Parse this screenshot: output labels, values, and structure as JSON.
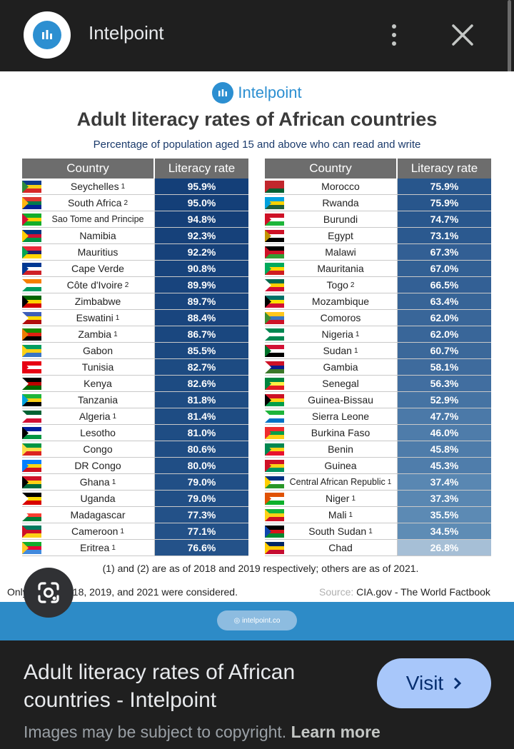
{
  "header": {
    "site_name": "Intelpoint",
    "menu_icon": "more-vert-icon",
    "close_icon": "close-icon"
  },
  "infographic": {
    "brand": "Intelpoint",
    "title": "Adult literacy rates of African countries",
    "subtitle": "Percentage of population aged 15 and above who can read and write",
    "col_country": "Country",
    "col_rate": "Literacy rate",
    "left_rows": [
      {
        "country": "Seychelles",
        "sup": "1",
        "rate": "95.9%",
        "color": "#143f78",
        "flag": [
          "#0d3b8c",
          "#f7d117",
          "#d62828",
          "#2e8b3c"
        ]
      },
      {
        "country": "South Africa",
        "sup": "2",
        "rate": "95.0%",
        "color": "#143f78",
        "flag": [
          "#de3831",
          "#007a4d",
          "#002395",
          "#ffb612"
        ]
      },
      {
        "country": "Sao Tome and Principe",
        "sup": "",
        "rate": "94.8%",
        "color": "#153f78",
        "flag": [
          "#12ad2b",
          "#ffce00",
          "#12ad2b",
          "#d21034"
        ]
      },
      {
        "country": "Namibia",
        "sup": "",
        "rate": "92.3%",
        "color": "#16417a",
        "flag": [
          "#003580",
          "#d21034",
          "#009543",
          "#ffce00"
        ]
      },
      {
        "country": "Mauritius",
        "sup": "",
        "rate": "92.2%",
        "color": "#16417a",
        "flag": [
          "#ea2839",
          "#1a206d",
          "#ffd500",
          "#00a551"
        ]
      },
      {
        "country": "Cape Verde",
        "sup": "",
        "rate": "90.8%",
        "color": "#17437c",
        "flag": [
          "#003893",
          "#ffffff",
          "#cf2027",
          "#003893"
        ]
      },
      {
        "country": "Côte d'Ivoire",
        "sup": "2",
        "rate": "89.9%",
        "color": "#18447d",
        "flag": [
          "#f77f00",
          "#ffffff",
          "#009e60",
          "#ffffff"
        ]
      },
      {
        "country": "Zimbabwe",
        "sup": "",
        "rate": "89.7%",
        "color": "#18447d",
        "flag": [
          "#006400",
          "#ffd200",
          "#d40000",
          "#000000"
        ]
      },
      {
        "country": "Eswatini",
        "sup": "1",
        "rate": "88.4%",
        "color": "#19457e",
        "flag": [
          "#3e5eb9",
          "#ffd900",
          "#b10c0c",
          "#ffffff"
        ]
      },
      {
        "country": "Zambia",
        "sup": "1",
        "rate": "86.7%",
        "color": "#1a477f",
        "flag": [
          "#198a00",
          "#de2010",
          "#000000",
          "#ef7d00"
        ]
      },
      {
        "country": "Gabon",
        "sup": "",
        "rate": "85.5%",
        "color": "#1b4880",
        "flag": [
          "#009e60",
          "#fcd116",
          "#3a75c4",
          "#fcd116"
        ]
      },
      {
        "country": "Tunisia",
        "sup": "",
        "rate": "82.7%",
        "color": "#1d4b82",
        "flag": [
          "#e70013",
          "#ffffff",
          "#e70013",
          "#e70013"
        ]
      },
      {
        "country": "Kenya",
        "sup": "",
        "rate": "82.6%",
        "color": "#1d4b82",
        "flag": [
          "#000000",
          "#bb0000",
          "#006600",
          "#ffffff"
        ]
      },
      {
        "country": "Tanzania",
        "sup": "",
        "rate": "81.8%",
        "color": "#1e4c83",
        "flag": [
          "#1eb53a",
          "#fcd116",
          "#000000",
          "#00a3dd"
        ]
      },
      {
        "country": "Algeria",
        "sup": "1",
        "rate": "81.4%",
        "color": "#1e4c83",
        "flag": [
          "#006233",
          "#ffffff",
          "#d21034",
          "#ffffff"
        ]
      },
      {
        "country": "Lesotho",
        "sup": "",
        "rate": "81.0%",
        "color": "#1f4d84",
        "flag": [
          "#00209f",
          "#ffffff",
          "#009543",
          "#000000"
        ]
      },
      {
        "country": "Congo",
        "sup": "",
        "rate": "80.6%",
        "color": "#1f4d84",
        "flag": [
          "#009543",
          "#fbde4a",
          "#dc241f",
          "#fbde4a"
        ]
      },
      {
        "country": "DR Congo",
        "sup": "",
        "rate": "80.0%",
        "color": "#204e85",
        "flag": [
          "#007fff",
          "#f7d618",
          "#ce1021",
          "#007fff"
        ]
      },
      {
        "country": "Ghana",
        "sup": "1",
        "rate": "79.0%",
        "color": "#214f86",
        "flag": [
          "#ce1126",
          "#fcd116",
          "#006b3f",
          "#000000"
        ]
      },
      {
        "country": "Uganda",
        "sup": "",
        "rate": "79.0%",
        "color": "#214f86",
        "flag": [
          "#000000",
          "#fcdc04",
          "#d90000",
          "#ffffff"
        ]
      },
      {
        "country": "Madagascar",
        "sup": "",
        "rate": "77.3%",
        "color": "#235188",
        "flag": [
          "#ffffff",
          "#fc3d32",
          "#007e3a",
          "#ffffff"
        ]
      },
      {
        "country": "Cameroon",
        "sup": "1",
        "rate": "77.1%",
        "color": "#235188",
        "flag": [
          "#007a5e",
          "#ce1126",
          "#fcd116",
          "#ce1126"
        ]
      },
      {
        "country": "Eritrea",
        "sup": "1",
        "rate": "76.6%",
        "color": "#245289",
        "flag": [
          "#12ad2b",
          "#ea0437",
          "#4189dd",
          "#ffc726"
        ]
      }
    ],
    "right_rows": [
      {
        "country": "Morocco",
        "sup": "",
        "rate": "75.9%",
        "color": "#28568c",
        "flag": [
          "#c1272d",
          "#c1272d",
          "#006233",
          "#c1272d"
        ]
      },
      {
        "country": "Rwanda",
        "sup": "",
        "rate": "75.9%",
        "color": "#28568c",
        "flag": [
          "#00a1de",
          "#fad201",
          "#20603d",
          "#00a1de"
        ]
      },
      {
        "country": "Burundi",
        "sup": "",
        "rate": "74.7%",
        "color": "#29578d",
        "flag": [
          "#ce1126",
          "#ffffff",
          "#1eb53a",
          "#ce1126"
        ]
      },
      {
        "country": "Egypt",
        "sup": "",
        "rate": "73.1%",
        "color": "#2b598f",
        "flag": [
          "#ce1126",
          "#ffffff",
          "#000000",
          "#c09300"
        ]
      },
      {
        "country": "Malawi",
        "sup": "",
        "rate": "67.3%",
        "color": "#325f94",
        "flag": [
          "#000000",
          "#ce1126",
          "#339e35",
          "#ce1126"
        ]
      },
      {
        "country": "Mauritania",
        "sup": "",
        "rate": "67.0%",
        "color": "#326094",
        "flag": [
          "#00a95c",
          "#ffd700",
          "#d01c1f",
          "#00a95c"
        ]
      },
      {
        "country": "Togo",
        "sup": "2",
        "rate": "66.5%",
        "color": "#336095",
        "flag": [
          "#006a4e",
          "#ffce00",
          "#d21034",
          "#ffffff"
        ]
      },
      {
        "country": "Mozambique",
        "sup": "",
        "rate": "63.4%",
        "color": "#376497",
        "flag": [
          "#007168",
          "#fce100",
          "#d21034",
          "#000000"
        ]
      },
      {
        "country": "Comoros",
        "sup": "",
        "rate": "62.0%",
        "color": "#396699",
        "flag": [
          "#ffc61e",
          "#3a75c4",
          "#ce1126",
          "#3d8e33"
        ]
      },
      {
        "country": "Nigeria",
        "sup": "1",
        "rate": "62.0%",
        "color": "#396699",
        "flag": [
          "#008751",
          "#ffffff",
          "#008751",
          "#ffffff"
        ]
      },
      {
        "country": "Sudan",
        "sup": "1",
        "rate": "60.7%",
        "color": "#3b689a",
        "flag": [
          "#d21034",
          "#ffffff",
          "#000000",
          "#007229"
        ]
      },
      {
        "country": "Gambia",
        "sup": "",
        "rate": "58.1%",
        "color": "#3e6b9d",
        "flag": [
          "#ce1126",
          "#0c1c8c",
          "#3a7728",
          "#ffffff"
        ]
      },
      {
        "country": "Senegal",
        "sup": "",
        "rate": "56.3%",
        "color": "#416ea0",
        "flag": [
          "#00853f",
          "#fdef42",
          "#e31b23",
          "#00853f"
        ]
      },
      {
        "country": "Guinea-Bissau",
        "sup": "",
        "rate": "52.9%",
        "color": "#4573a3",
        "flag": [
          "#ce1126",
          "#fcd116",
          "#009e49",
          "#000000"
        ]
      },
      {
        "country": "Sierra Leone",
        "sup": "",
        "rate": "47.7%",
        "color": "#4b79a8",
        "flag": [
          "#1eb53a",
          "#ffffff",
          "#0072c6",
          "#ffffff"
        ]
      },
      {
        "country": "Burkina Faso",
        "sup": "",
        "rate": "46.0%",
        "color": "#4e7caa",
        "flag": [
          "#ef2b2d",
          "#009e49",
          "#fcd116",
          "#ef2b2d"
        ]
      },
      {
        "country": "Benin",
        "sup": "",
        "rate": "45.8%",
        "color": "#4e7caa",
        "flag": [
          "#008751",
          "#fcd116",
          "#e8112d",
          "#008751"
        ]
      },
      {
        "country": "Guinea",
        "sup": "",
        "rate": "45.3%",
        "color": "#4f7dab",
        "flag": [
          "#ce1126",
          "#fcd116",
          "#009460",
          "#ce1126"
        ]
      },
      {
        "country": "Central African Republic",
        "sup": "1",
        "rate": "37.4%",
        "color": "#5987b2",
        "flag": [
          "#003082",
          "#ffffff",
          "#289728",
          "#ffce00"
        ]
      },
      {
        "country": "Niger",
        "sup": "1",
        "rate": "37.3%",
        "color": "#5987b2",
        "flag": [
          "#e05206",
          "#ffffff",
          "#0db02b",
          "#e05206"
        ]
      },
      {
        "country": "Mali",
        "sup": "1",
        "rate": "35.5%",
        "color": "#5c8ab4",
        "flag": [
          "#14b53a",
          "#fcd116",
          "#ce1126",
          "#fcd116"
        ]
      },
      {
        "country": "South Sudan",
        "sup": "1",
        "rate": "34.5%",
        "color": "#5e8cb5",
        "flag": [
          "#000000",
          "#da121a",
          "#078930",
          "#0f47af"
        ]
      },
      {
        "country": "Chad",
        "sup": "",
        "rate": "26.8%",
        "color": "#a6bfd6",
        "flag": [
          "#002664",
          "#fecb00",
          "#c60c30",
          "#fecb00"
        ]
      }
    ],
    "note": "(1) and (2) are as of 2018 and 2019 respectively; others are as of 2021.",
    "only_note": "Only d... from 2018, 2019, and 2021 were considered.",
    "only_note_visible": "Only ... rom 2018, 2019, and 2021 were considered.",
    "source_label": "Source:",
    "source_value": "CIA.gov - The World Factbook",
    "footer_url": "intelpoint.co"
  },
  "lens": {
    "icon": "google-lens-icon"
  },
  "bottom": {
    "title": "Adult literacy rates of African countries - Intelpoint",
    "visit_label": "Visit",
    "copyright": "Images may be subject to copyright.",
    "learn_more": "Learn more"
  }
}
